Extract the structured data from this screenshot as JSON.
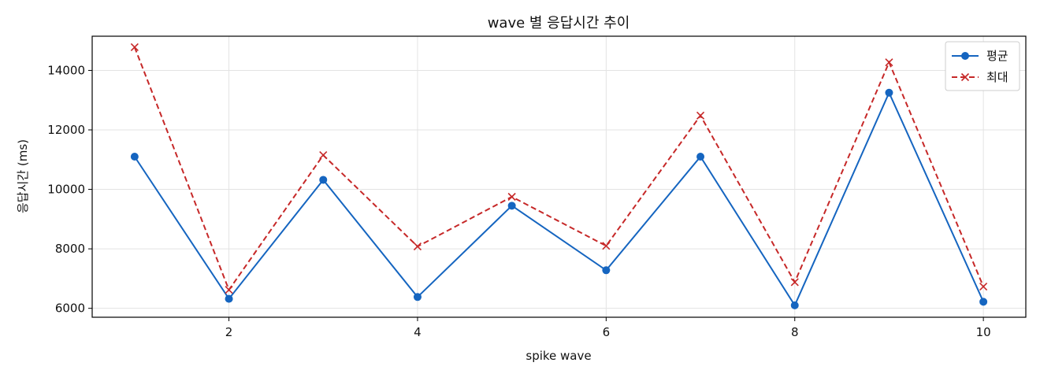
{
  "chart_data": {
    "type": "line",
    "title": "wave 별 응답시간 추이",
    "xlabel": "spike wave",
    "ylabel": "응답시간 (ms)",
    "x": [
      1,
      2,
      3,
      4,
      5,
      6,
      7,
      8,
      9,
      10
    ],
    "xlim": [
      0.55,
      10.45
    ],
    "ylim": [
      5700,
      15150
    ],
    "xticks": [
      2,
      4,
      6,
      8,
      10
    ],
    "yticks": [
      6000,
      8000,
      10000,
      12000,
      14000
    ],
    "grid": true,
    "legend_position": "top-right",
    "series": [
      {
        "name": "평균",
        "values": [
          11100,
          6320,
          10320,
          6380,
          9450,
          7280,
          11100,
          6100,
          13250,
          6220
        ],
        "color": "#1565c0",
        "marker": "circle",
        "linestyle": "solid"
      },
      {
        "name": "최대",
        "values": [
          14780,
          6620,
          11150,
          8080,
          9750,
          8100,
          12480,
          6880,
          14270,
          6730
        ],
        "color": "#c62828",
        "marker": "x",
        "linestyle": "dashed"
      }
    ]
  }
}
